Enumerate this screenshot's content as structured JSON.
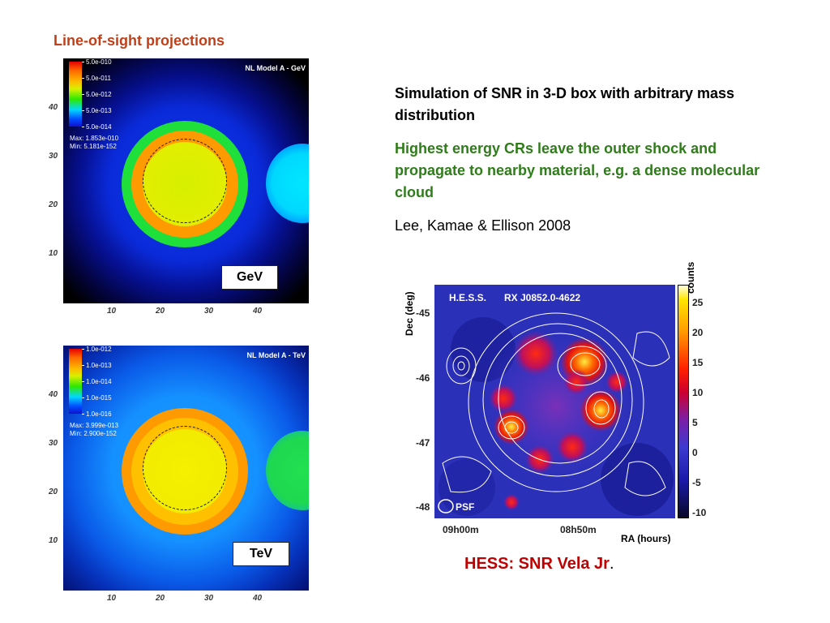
{
  "slide_title": "Line-of-sight projections",
  "gev_panel": {
    "model_label": "NL Model A - GeV",
    "colorbar_labels": [
      "5.0e-010",
      "5.0e-011",
      "5.0e-012",
      "5.0e-013",
      "5.0e-014"
    ],
    "max_text": "Max: 1.853e-010",
    "min_text": "Min: 5.181e-152",
    "energy_label": "GeV"
  },
  "tev_panel": {
    "model_label": "NL Model A - TeV",
    "colorbar_labels": [
      "1.0e-012",
      "1.0e-013",
      "1.0e-014",
      "1.0e-015",
      "1.0e-016"
    ],
    "max_text": "Max: 3.999e-013",
    "min_text": "Min: 2.900e-152",
    "energy_label": "TeV"
  },
  "sim_axes": {
    "y_ticks": [
      "40",
      "30",
      "20",
      "10"
    ],
    "x_ticks": [
      "10",
      "20",
      "30",
      "40"
    ]
  },
  "sim_description": "Simulation of SNR in 3-D box with arbitrary mass distribution",
  "cr_description": "Highest energy CRs leave the outer shock and propagate to nearby material, e.g. a dense molecular cloud",
  "citation": "Lee, Kamae & Ellison 2008",
  "hess_map": {
    "instrument": "H.E.S.S.",
    "source": "RX J0852.0-4622",
    "psf_label": "PSF",
    "colorbar_title": "counts",
    "colorbar_ticks": [
      "25",
      "20",
      "15",
      "10",
      "5",
      "0",
      "-5",
      "-10"
    ],
    "dec_label": "Dec (deg)",
    "dec_ticks": [
      "-45",
      "-46",
      "-47",
      "-48"
    ],
    "ra_ticks": [
      "09h00m",
      "08h50m"
    ],
    "ra_label": "RA (hours)",
    "caption": "HESS:  SNR Vela Jr",
    "caption_suffix": "."
  },
  "colors": {
    "title_color": "#c0401a",
    "highlight_green": "#2f7d1a",
    "caption_red": "#c00000"
  }
}
